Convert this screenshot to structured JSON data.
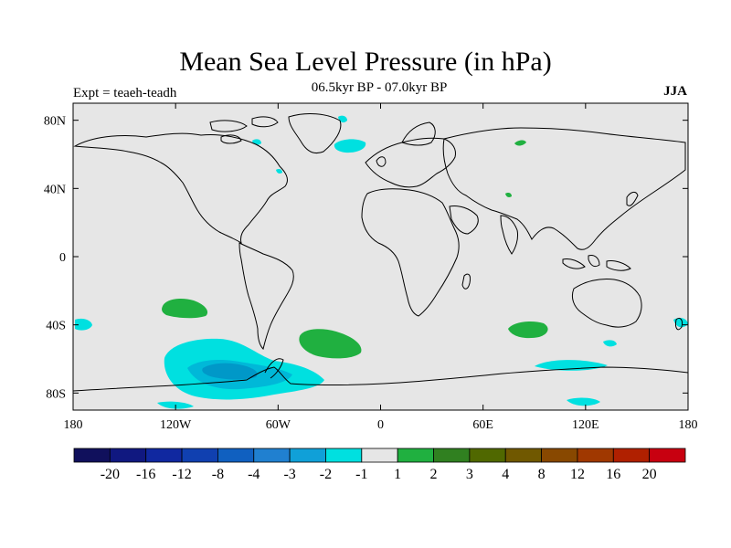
{
  "title": "Mean Sea Level Pressure (in hPa)",
  "subtitle": "06.5kyr BP - 07.0kyr BP",
  "left_label": "Expt = teaeh-teadh",
  "right_label": "JJA",
  "colors": {
    "land_ocean": "#e6e6e6",
    "neg_1": "#00e0e0",
    "neg_2": "#00b8d8",
    "neg_3": "#0098c8",
    "pos_1": "#20b040"
  },
  "map": {
    "lat_ticks": [
      {
        "value": 80,
        "label": "80N"
      },
      {
        "value": 40,
        "label": "40N"
      },
      {
        "value": 0,
        "label": "0"
      },
      {
        "value": -40,
        "label": "40S"
      },
      {
        "value": -80,
        "label": "80S"
      }
    ],
    "lon_ticks": [
      {
        "value": -180,
        "label": "180"
      },
      {
        "value": -120,
        "label": "120W"
      },
      {
        "value": -60,
        "label": "60W"
      },
      {
        "value": 0,
        "label": "0"
      },
      {
        "value": 60,
        "label": "60E"
      },
      {
        "value": 120,
        "label": "120E"
      },
      {
        "value": 180,
        "label": "180"
      }
    ]
  },
  "colorbar": {
    "colors": [
      "#10105c",
      "#101880",
      "#1028a0",
      "#1040b0",
      "#1060c0",
      "#2080d0",
      "#10a0d8",
      "#00e0e0",
      "#e6e6e6",
      "#20b040",
      "#308020",
      "#506800",
      "#705800",
      "#884800",
      "#a03800",
      "#b02000",
      "#c80010"
    ],
    "labels": [
      "-20",
      "-16",
      "-12",
      "-8",
      "-4",
      "-3",
      "-2",
      "-1",
      "1",
      "2",
      "3",
      "4",
      "8",
      "12",
      "16",
      "20"
    ]
  }
}
